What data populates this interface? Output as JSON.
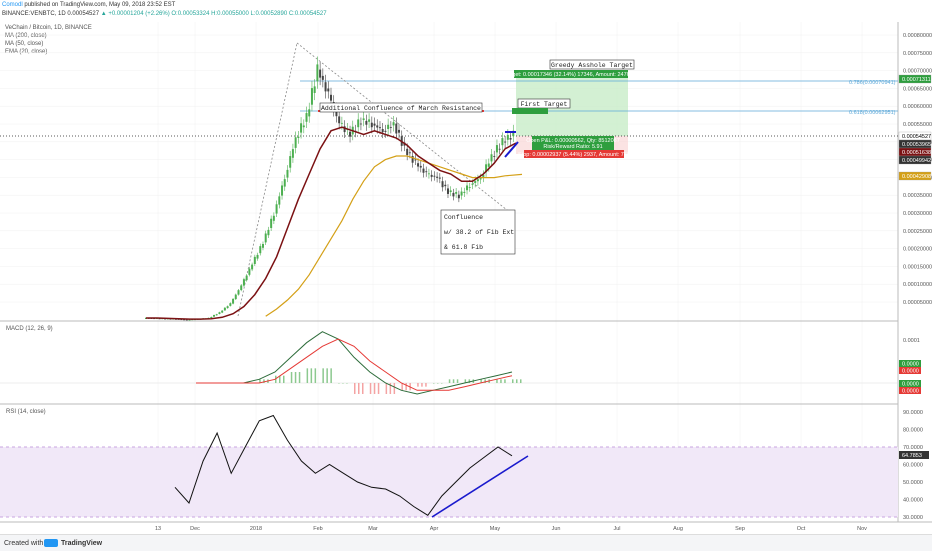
{
  "header": {
    "author": "Comodl",
    "published": "published on TradingView.com, May 09, 2018 23:52 EST",
    "symbol": "BINANCE:VENBTC, 1D 0.00054527",
    "change": "▲ +0.00001204 (+2.26%)",
    "ohlc": "O:0.00053324 H:0.00055000 L:0.00052890 C:0.00054527"
  },
  "price_legend": {
    "title": "VeChain / Bitcoin, 1D, BINANCE",
    "ma200": "MA (200, close)",
    "ma50": "MA (50, close)",
    "ema20": "EMA (20, close)"
  },
  "macd_legend": "MACD (12, 26, 9)",
  "rsi_legend": "RSI (14, close)",
  "footer": {
    "created_with": "Created with",
    "tv": "TradingView"
  },
  "colors": {
    "candle_up": "#4caf50",
    "candle_down": "#444444",
    "ma50": "#d4a017",
    "ema20": "#7b1113",
    "fib_line": "#5da8d8",
    "target_green": "#2e9e3e",
    "stop_red": "#e53935",
    "trend_blue": "#1a1acd",
    "rsi_band": "#f1e8f8"
  },
  "annotations": {
    "greedy": "Greedy Asshole Target",
    "first": "First Target",
    "march": "Additional Confluence of March Resistance",
    "confluence_1": "Confluence",
    "confluence_2": "w/ 38.2 of Fib Ext",
    "confluence_3": "& 61.8 Fib"
  },
  "position": {
    "target_label": "Target: 0.00017346 (32.14%) 17346, Amount: 2476.51",
    "pnl_label": "Open P&L: 0.00000562, Qty: 8512087",
    "rr_label": "Risk/Reward Ratio: 5.91",
    "stop_label": "Stop: 0.00002937 (5.44%) 2937, Amount: 750"
  },
  "fib_levels": {
    "f786": "0.786(0.00070941)",
    "f618": "0.618(0.00062951)"
  },
  "price_axis": {
    "ticks": [
      "0.00080000",
      "0.00075000",
      "0.00070000",
      "0.00065000",
      "0.00060000",
      "0.00055000",
      "0.00050000",
      "0.00045000",
      "0.00040000",
      "0.00035000",
      "0.00030000",
      "0.00025000",
      "0.00020000",
      "0.00015000",
      "0.00010000",
      "0.00005000"
    ],
    "markers": [
      {
        "label": "0.00071311",
        "color": "#2e9e3e",
        "text_color": "#ffffff"
      },
      {
        "label": "0.00054527",
        "color": "#ffffff",
        "text_color": "#000000"
      },
      {
        "label": "0.00053965",
        "color": "#333333",
        "text_color": "#ffffff"
      },
      {
        "label": "0.00051638",
        "color": "#7b1113",
        "text_color": "#ffffff"
      },
      {
        "label": "0.00049942",
        "color": "#333333",
        "text_color": "#ffffff"
      },
      {
        "label": "0.00042908",
        "color": "#d4a017",
        "text_color": "#ffffff"
      }
    ]
  },
  "macd_axis": {
    "tick": "0.0001",
    "markers": [
      "0.0000",
      "0.0000",
      "0.0000",
      "0.0000"
    ]
  },
  "rsi_axis": {
    "ticks": [
      "90.0000",
      "80.0000",
      "70.0000",
      "60.0000",
      "50.0000",
      "40.0000",
      "30.0000"
    ],
    "current": "64.7853"
  },
  "time_axis": [
    "13",
    "Dec",
    "2018",
    "Feb",
    "Mar",
    "Apr",
    "May",
    "Jun",
    "Jul",
    "Aug",
    "Sep",
    "Oct",
    "Nov"
  ],
  "chart_data": [
    {
      "type": "line",
      "title": "VeChain / Bitcoin, 1D, BINANCE",
      "x_start": "2017-11-07",
      "x_end": "2018-05-09",
      "ylim": [
        3e-05,
        0.00083
      ],
      "series": [
        {
          "name": "Price (close)",
          "values": [
            3e-05,
            2.9e-05,
            2.8e-05,
            2.7e-05,
            2.5e-05,
            2.7e-05,
            3e-05,
            4.5e-05,
            7e-05,
            0.00012,
            0.00018,
            0.00024,
            0.00032,
            0.00042,
            0.00053,
            0.00059,
            0.00072,
            0.00065,
            0.00057,
            0.00054,
            0.00058,
            0.00057,
            0.00055,
            0.00057,
            0.0005,
            0.00046,
            0.00043,
            0.00042,
            0.00038,
            0.00037,
            0.0004,
            0.00042,
            0.00048,
            0.00052,
            0.00054
          ]
        },
        {
          "name": "EMA (20, close)",
          "values": [
            3e-05,
            3e-05,
            2.9e-05,
            2.8e-05,
            2.7e-05,
            2.7e-05,
            2.8e-05,
            3.2e-05,
            4.2e-05,
            6.2e-05,
            9.5e-05,
            0.00014,
            0.0002,
            0.00028,
            0.00036,
            0.00043,
            0.0005,
            0.00055,
            0.00056,
            0.00055,
            0.00054,
            0.00055,
            0.00054,
            0.00053,
            0.00051,
            0.00048,
            0.00046,
            0.00044,
            0.00043,
            0.00041,
            0.00041,
            0.00043,
            0.00046,
            0.0005,
            0.000516
          ]
        },
        {
          "name": "MA (50, close)",
          "values": [
            null,
            null,
            null,
            null,
            null,
            null,
            null,
            null,
            null,
            null,
            null,
            3.5e-05,
            5.5e-05,
            8e-05,
            0.00011,
            0.00015,
            0.0002,
            0.00025,
            0.0003,
            0.00036,
            0.00041,
            0.00045,
            0.00047,
            0.00048,
            0.00048,
            0.00047,
            0.00046,
            0.00045,
            0.00044,
            0.00043,
            0.00042,
            0.00042,
            0.00042,
            0.000425,
            0.000429
          ]
        }
      ]
    },
    {
      "type": "line",
      "title": "MACD (12, 26, 9)",
      "series": [
        {
          "name": "MACD",
          "values": [
            0,
            0,
            0,
            0,
            1e-05,
            3e-05,
            7e-05,
            0.00011,
            0.00014,
            0.00012,
            7e-05,
            3e-05,
            0,
            -2e-05,
            -3e-05,
            -2e-05,
            -1e-05,
            0,
            1e-05,
            2e-05,
            3e-05
          ]
        },
        {
          "name": "Signal",
          "values": [
            0,
            0,
            0,
            0,
            0,
            1e-05,
            4e-05,
            7e-05,
            0.0001,
            0.00012,
            0.0001,
            6e-05,
            3e-05,
            0,
            -2e-05,
            -2e-05,
            -2e-05,
            -1e-05,
            0,
            1e-05,
            2e-05
          ]
        }
      ]
    },
    {
      "type": "line",
      "title": "RSI (14, close)",
      "ylim": [
        30,
        90
      ],
      "series": [
        {
          "name": "RSI (14, close)",
          "values": [
            47,
            38,
            62,
            78,
            55,
            70,
            85,
            88,
            74,
            62,
            55,
            60,
            55,
            50,
            47,
            46,
            42,
            36,
            31,
            42,
            50,
            58,
            64,
            70,
            65
          ]
        }
      ]
    }
  ]
}
